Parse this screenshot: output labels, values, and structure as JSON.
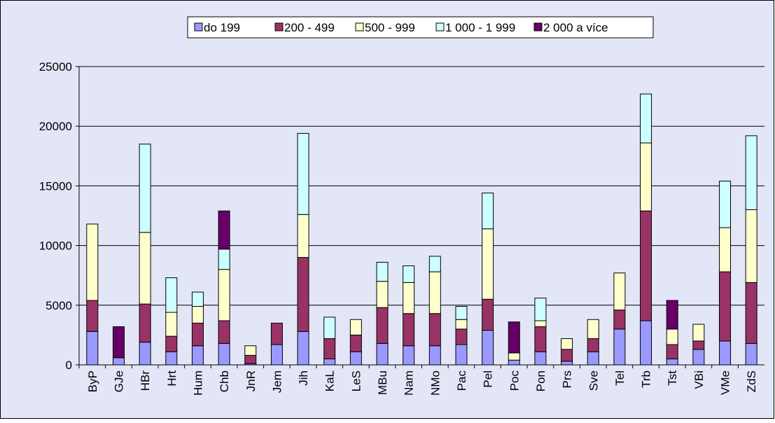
{
  "chart_data": {
    "type": "stacked_bar",
    "categories": [
      "ByP",
      "GJe",
      "HBr",
      "Hrt",
      "Hum",
      "Chb",
      "JnR",
      "Jem",
      "Jih",
      "KaL",
      "LeS",
      "MBu",
      "Nam",
      "NMo",
      "Pac",
      "Pel",
      "Poc",
      "Pon",
      "Prs",
      "Sve",
      "Tel",
      "Trb",
      "Tst",
      "VBi",
      "VMe",
      "ZdS"
    ],
    "series": [
      {
        "name": "do 199",
        "color": "#9999ff",
        "values": [
          2800,
          600,
          1900,
          1100,
          1600,
          1800,
          100,
          1700,
          2800,
          500,
          1100,
          1800,
          1600,
          1600,
          1700,
          2900,
          400,
          1100,
          300,
          1100,
          3000,
          3700,
          500,
          1300,
          2000,
          1800
        ]
      },
      {
        "name": "200 - 499",
        "color": "#993366",
        "values": [
          2600,
          0,
          3200,
          1300,
          1900,
          1900,
          700,
          1800,
          6200,
          1700,
          1400,
          3000,
          2700,
          2700,
          1300,
          2600,
          0,
          2100,
          1000,
          1100,
          1600,
          9200,
          1200,
          700,
          5800,
          5100
        ]
      },
      {
        "name": "500 - 999",
        "color": "#ffffcc",
        "values": [
          6400,
          0,
          6000,
          2000,
          1400,
          4300,
          800,
          0,
          3600,
          0,
          1300,
          2200,
          2600,
          3500,
          800,
          5900,
          600,
          500,
          900,
          1600,
          3100,
          5700,
          1300,
          1400,
          3700,
          6100
        ]
      },
      {
        "name": "1 000 - 1 999",
        "color": "#ccffff",
        "values": [
          0,
          0,
          7400,
          2900,
          1200,
          1700,
          0,
          0,
          6800,
          1800,
          0,
          1600,
          1400,
          1300,
          1100,
          3000,
          0,
          1900,
          0,
          0,
          0,
          4100,
          0,
          0,
          3900,
          6200
        ]
      },
      {
        "name": "2 000 a více",
        "color": "#660066",
        "values": [
          0,
          2600,
          0,
          0,
          0,
          3200,
          0,
          0,
          0,
          0,
          0,
          0,
          0,
          0,
          0,
          0,
          2600,
          0,
          0,
          0,
          0,
          0,
          2400,
          0,
          0,
          0
        ]
      }
    ],
    "ylim": [
      0,
      25000
    ],
    "yticks": [
      0,
      5000,
      10000,
      15000,
      20000,
      25000
    ],
    "grid": true
  }
}
